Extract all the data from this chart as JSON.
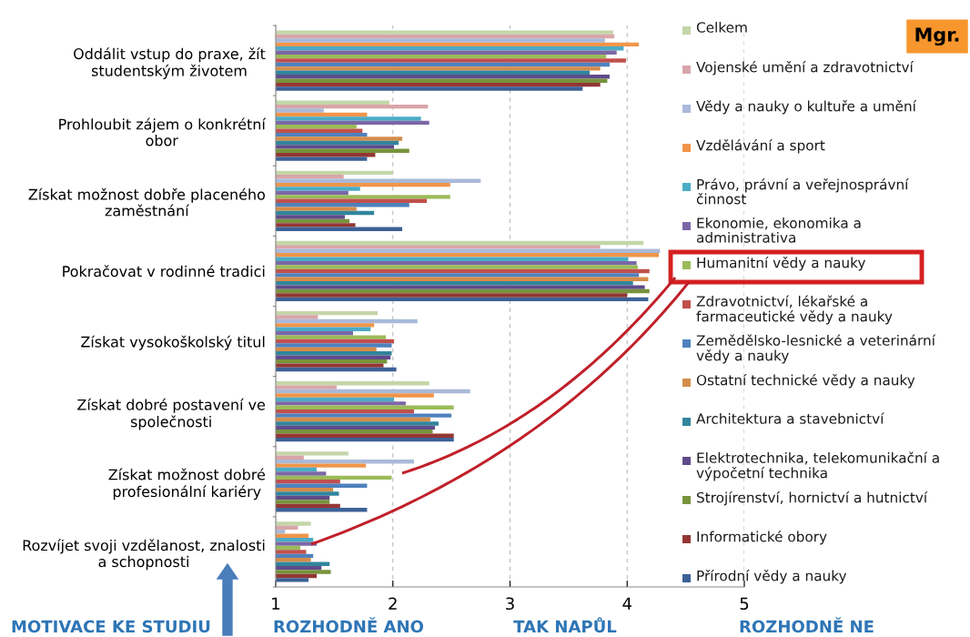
{
  "chart_data": {
    "type": "bar",
    "orientation": "horizontal",
    "categories": [
      "Oddálit vstup do praxe, žít\nstudentským životem",
      "Prohloubit zájem o konkrétní\nobor",
      "Získat možnost dobře placeného\nzaměstnání",
      "Pokračovat v rodinné tradici",
      "Získat vysokoškolský titul",
      "Získat dobré postavení ve\nspolečnosti",
      "Získat možnost dobré\nprofesionální kariéry",
      "Rozvíjet svoji vzdělanost, znalosti\na schopnosti"
    ],
    "series": [
      {
        "name": "Celkem",
        "color": "#c4d6a8",
        "values": [
          3.88,
          1.97,
          2.0,
          4.14,
          1.87,
          2.31,
          1.62,
          1.3
        ]
      },
      {
        "name": "Vojenské umění a zdravotnictví",
        "color": "#d9a5a9",
        "values": [
          3.89,
          2.3,
          1.58,
          3.77,
          1.36,
          1.52,
          1.24,
          1.19
        ]
      },
      {
        "name": "Vědy a nauky o kultuře a umění",
        "color": "#a9b9d9",
        "values": [
          3.81,
          1.41,
          2.75,
          4.28,
          2.21,
          2.66,
          2.18,
          1.08
        ]
      },
      {
        "name": "Vzdělávání a sport",
        "color": "#f0954a",
        "values": [
          4.1,
          1.78,
          2.49,
          4.27,
          1.84,
          2.35,
          1.77,
          1.28
        ]
      },
      {
        "name": "Právo, právní a veřejnosprávní\nčinnost",
        "color": "#4bacc6",
        "values": [
          3.97,
          2.24,
          1.72,
          4.01,
          1.81,
          2.01,
          1.35,
          1.32
        ]
      },
      {
        "name": "Ekonomie, ekonomika a\nadministrativa",
        "color": "#7b67a6",
        "values": [
          3.91,
          2.31,
          1.62,
          4.08,
          1.66,
          2.11,
          1.43,
          1.35
        ]
      },
      {
        "name": "Humanitní vědy a nauky",
        "color": "#9bbb59",
        "values": [
          3.82,
          1.69,
          2.49,
          4.09,
          1.94,
          2.52,
          1.99,
          1.21
        ]
      },
      {
        "name": "Zdravotnictví, lékařské a\nfarmaceutické vědy a nauky",
        "color": "#c0504d",
        "values": [
          3.99,
          1.74,
          2.29,
          4.19,
          2.01,
          2.18,
          1.55,
          1.26
        ]
      },
      {
        "name": "Zemědělsko-lesnické a veterinární\nvědy a nauky",
        "color": "#4f81bd",
        "values": [
          3.85,
          1.78,
          2.14,
          4.1,
          1.99,
          2.5,
          1.78,
          1.32
        ]
      },
      {
        "name": "Ostatní technické vědy a nauky",
        "color": "#d48c4a",
        "values": [
          3.77,
          2.08,
          1.69,
          4.18,
          1.86,
          2.32,
          1.49,
          1.3
        ]
      },
      {
        "name": "Architektura a stavebnictví",
        "color": "#31859c",
        "values": [
          3.68,
          2.05,
          1.84,
          4.05,
          1.99,
          2.39,
          1.54,
          1.46
        ]
      },
      {
        "name": "Elektrotechnika, telekomunikační a\nvýpočetní technika",
        "color": "#5f4b8b",
        "values": [
          3.85,
          2.01,
          1.59,
          4.15,
          1.98,
          2.36,
          1.46,
          1.39
        ]
      },
      {
        "name": "Strojírenství, hornictví a hutnictví",
        "color": "#77933c",
        "values": [
          3.83,
          2.14,
          1.63,
          4.19,
          1.95,
          2.34,
          1.46,
          1.47
        ]
      },
      {
        "name": "Informatické obory",
        "color": "#943634",
        "values": [
          3.77,
          1.85,
          1.68,
          4.0,
          1.92,
          2.52,
          1.55,
          1.35
        ]
      },
      {
        "name": "Přírodní vědy a nauky",
        "color": "#3c6196",
        "values": [
          3.62,
          1.78,
          2.08,
          4.18,
          2.03,
          2.52,
          1.78,
          1.28
        ]
      }
    ],
    "xlim": [
      1,
      5
    ],
    "xticks": [
      1,
      2,
      3,
      4,
      5
    ],
    "grid": "x",
    "legend": "right",
    "annotations": [
      "Mgr.",
      "MOTIVACE KE STUDIU",
      "ROZHODNĚ ANO",
      "TAK NAPŮL",
      "ROZHODNĚ NE"
    ]
  }
}
